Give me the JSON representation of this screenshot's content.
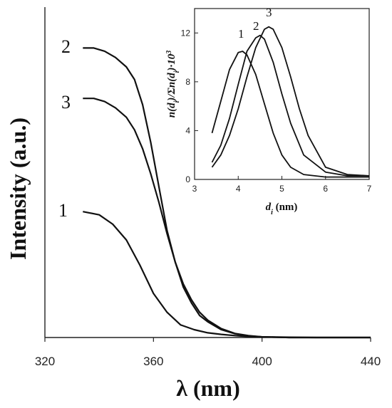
{
  "chart_data": [
    {
      "type": "line",
      "xlabel": "λ (nm)",
      "ylabel": "Intensity (a.u.)",
      "xlim": [
        320,
        440
      ],
      "ylim": [
        0,
        1.05
      ],
      "x_ticks": [
        "320",
        "360",
        "400",
        "440"
      ],
      "grid": false,
      "series": [
        {
          "name": "1",
          "x": [
            334,
            340,
            345,
            350,
            355,
            360,
            365,
            370,
            375,
            380,
            385,
            390,
            395,
            400,
            410,
            420,
            440
          ],
          "values": [
            0.4,
            0.39,
            0.36,
            0.31,
            0.23,
            0.14,
            0.08,
            0.04,
            0.025,
            0.015,
            0.01,
            0.006,
            0.003,
            0.002,
            0.001,
            0.0,
            0.0
          ]
        },
        {
          "name": "2",
          "x": [
            334,
            338,
            342,
            346,
            350,
            353,
            356,
            359,
            362,
            365,
            368,
            371,
            374,
            377,
            380,
            385,
            390,
            395,
            400,
            410,
            440
          ],
          "values": [
            0.92,
            0.92,
            0.91,
            0.89,
            0.86,
            0.82,
            0.74,
            0.62,
            0.48,
            0.34,
            0.24,
            0.16,
            0.11,
            0.07,
            0.05,
            0.025,
            0.012,
            0.005,
            0.002,
            0.0,
            0.0
          ]
        },
        {
          "name": "3",
          "x": [
            334,
            338,
            342,
            346,
            350,
            353,
            356,
            359,
            362,
            365,
            368,
            371,
            374,
            377,
            380,
            385,
            390,
            395,
            400,
            410,
            440
          ],
          "values": [
            0.76,
            0.76,
            0.75,
            0.73,
            0.7,
            0.66,
            0.6,
            0.52,
            0.43,
            0.33,
            0.24,
            0.17,
            0.12,
            0.08,
            0.055,
            0.028,
            0.013,
            0.006,
            0.002,
            0.0,
            0.0
          ]
        }
      ],
      "curve_labels": [
        "1",
        "2",
        "3"
      ]
    },
    {
      "type": "line",
      "xlabel": "d_i (nm)",
      "ylabel": "n(d_i)/Σn(d_i)·10^3",
      "xlim": [
        3,
        7
      ],
      "ylim": [
        0,
        14
      ],
      "x_ticks": [
        "3",
        "4",
        "5",
        "6",
        "7"
      ],
      "y_ticks": [
        "0",
        "4",
        "8",
        "12"
      ],
      "grid": false,
      "series": [
        {
          "name": "1",
          "x": [
            3.4,
            3.6,
            3.8,
            4.0,
            4.1,
            4.2,
            4.4,
            4.6,
            4.8,
            5.0,
            5.2,
            5.5,
            6.0,
            6.5,
            7.0
          ],
          "values": [
            3.8,
            6.4,
            9.0,
            10.4,
            10.5,
            10.2,
            8.6,
            6.2,
            3.8,
            2.0,
            1.0,
            0.4,
            0.2,
            0.2,
            0.2
          ]
        },
        {
          "name": "2",
          "x": [
            3.4,
            3.6,
            3.8,
            4.0,
            4.2,
            4.4,
            4.5,
            4.6,
            4.8,
            5.0,
            5.2,
            5.5,
            6.0,
            6.5,
            7.0
          ],
          "values": [
            1.4,
            2.8,
            5.0,
            7.8,
            10.5,
            11.6,
            11.8,
            11.5,
            9.6,
            7.0,
            4.6,
            2.0,
            0.6,
            0.3,
            0.3
          ]
        },
        {
          "name": "3",
          "x": [
            3.4,
            3.6,
            3.8,
            4.0,
            4.2,
            4.4,
            4.6,
            4.7,
            4.8,
            5.0,
            5.2,
            5.4,
            5.6,
            6.0,
            6.5,
            7.0
          ],
          "values": [
            1.0,
            2.0,
            3.6,
            5.8,
            8.4,
            10.8,
            12.3,
            12.5,
            12.3,
            10.8,
            8.4,
            5.8,
            3.6,
            1.0,
            0.4,
            0.3
          ]
        }
      ],
      "curve_labels": [
        "1",
        "2",
        "3"
      ]
    }
  ],
  "colors": {
    "line": "#111111",
    "axis": "#222222",
    "background": "#ffffff"
  }
}
